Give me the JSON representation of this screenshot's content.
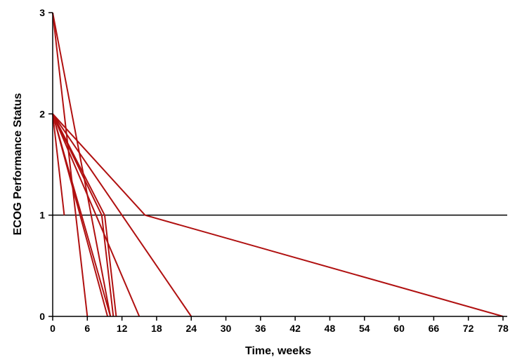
{
  "chart_data": {
    "type": "line",
    "xlabel": "Time, weeks",
    "ylabel": "ECOG Performance Status",
    "xlim": [
      0,
      78
    ],
    "ylim": [
      0,
      3
    ],
    "x_ticks": [
      0,
      6,
      12,
      18,
      24,
      30,
      36,
      42,
      48,
      54,
      60,
      66,
      72,
      78
    ],
    "y_ticks": [
      0,
      1,
      2,
      3
    ],
    "reference_line_y": 1,
    "grid": false,
    "line_color": "#b01010",
    "reference_line_color": "#000000",
    "series": [
      {
        "points": [
          [
            0,
            3
          ],
          [
            6,
            0
          ]
        ]
      },
      {
        "points": [
          [
            0,
            3
          ],
          [
            10,
            0
          ]
        ]
      },
      {
        "points": [
          [
            0,
            2
          ],
          [
            2,
            1
          ]
        ]
      },
      {
        "points": [
          [
            0,
            2
          ],
          [
            9.5,
            0
          ]
        ]
      },
      {
        "points": [
          [
            0,
            2
          ],
          [
            10,
            0
          ]
        ]
      },
      {
        "points": [
          [
            0,
            2
          ],
          [
            8.5,
            1
          ],
          [
            10.5,
            0
          ]
        ]
      },
      {
        "points": [
          [
            0,
            2
          ],
          [
            9,
            1
          ],
          [
            11,
            0
          ]
        ]
      },
      {
        "points": [
          [
            0,
            2
          ],
          [
            15,
            0
          ]
        ]
      },
      {
        "points": [
          [
            0,
            2
          ],
          [
            24,
            0
          ]
        ]
      },
      {
        "points": [
          [
            0,
            2
          ],
          [
            16,
            1
          ],
          [
            78,
            0
          ]
        ]
      }
    ]
  }
}
